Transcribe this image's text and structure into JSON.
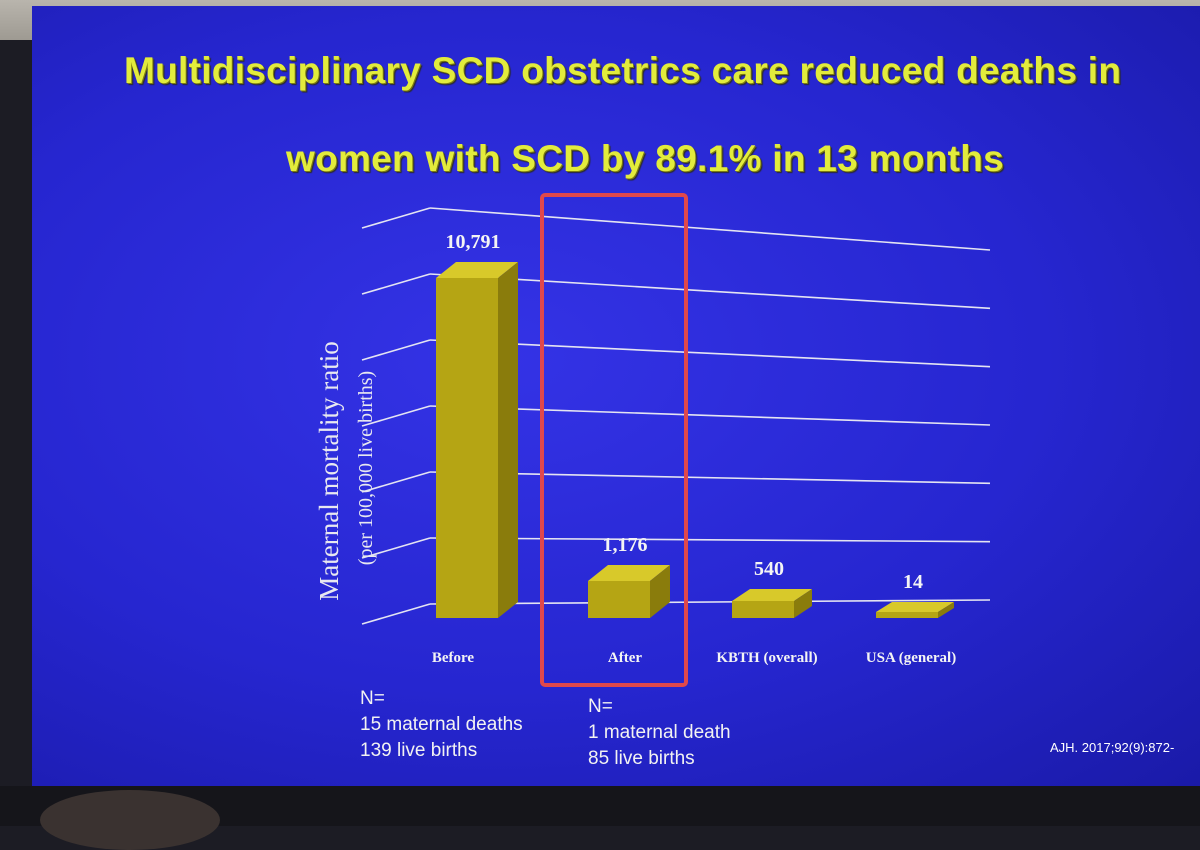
{
  "slide": {
    "title_line1": "Multidisciplinary SCD obstetrics care reduced deaths in",
    "title_line2": "women with SCD by 89.1% in 13 months",
    "citation": "AJH. 2017;92(9):872-"
  },
  "chart_data": {
    "type": "bar",
    "title": "Multidisciplinary SCD obstetrics care reduced deaths in women with SCD by 89.1% in 13 months",
    "ylabel": "Maternal mortality ratio",
    "ylabel_sub": "(per 100,000 live births)",
    "xlabel": "",
    "categories": [
      "Before",
      "After",
      "KBTH (overall)",
      "USA (general)"
    ],
    "values": [
      10791,
      1176,
      540,
      14
    ],
    "value_labels": [
      "10,791",
      "1,176",
      "540",
      "14"
    ],
    "ylim": [
      0,
      12000
    ],
    "grid": true,
    "bar_color": "#b5a514",
    "highlight": "After",
    "highlight_color": "#e0484c"
  },
  "notes": {
    "before": {
      "line1": "N=",
      "line2": "15 maternal deaths",
      "line3": "139 live births"
    },
    "after": {
      "line1": "N=",
      "line2": "1 maternal death",
      "line3": "85 live births"
    }
  }
}
